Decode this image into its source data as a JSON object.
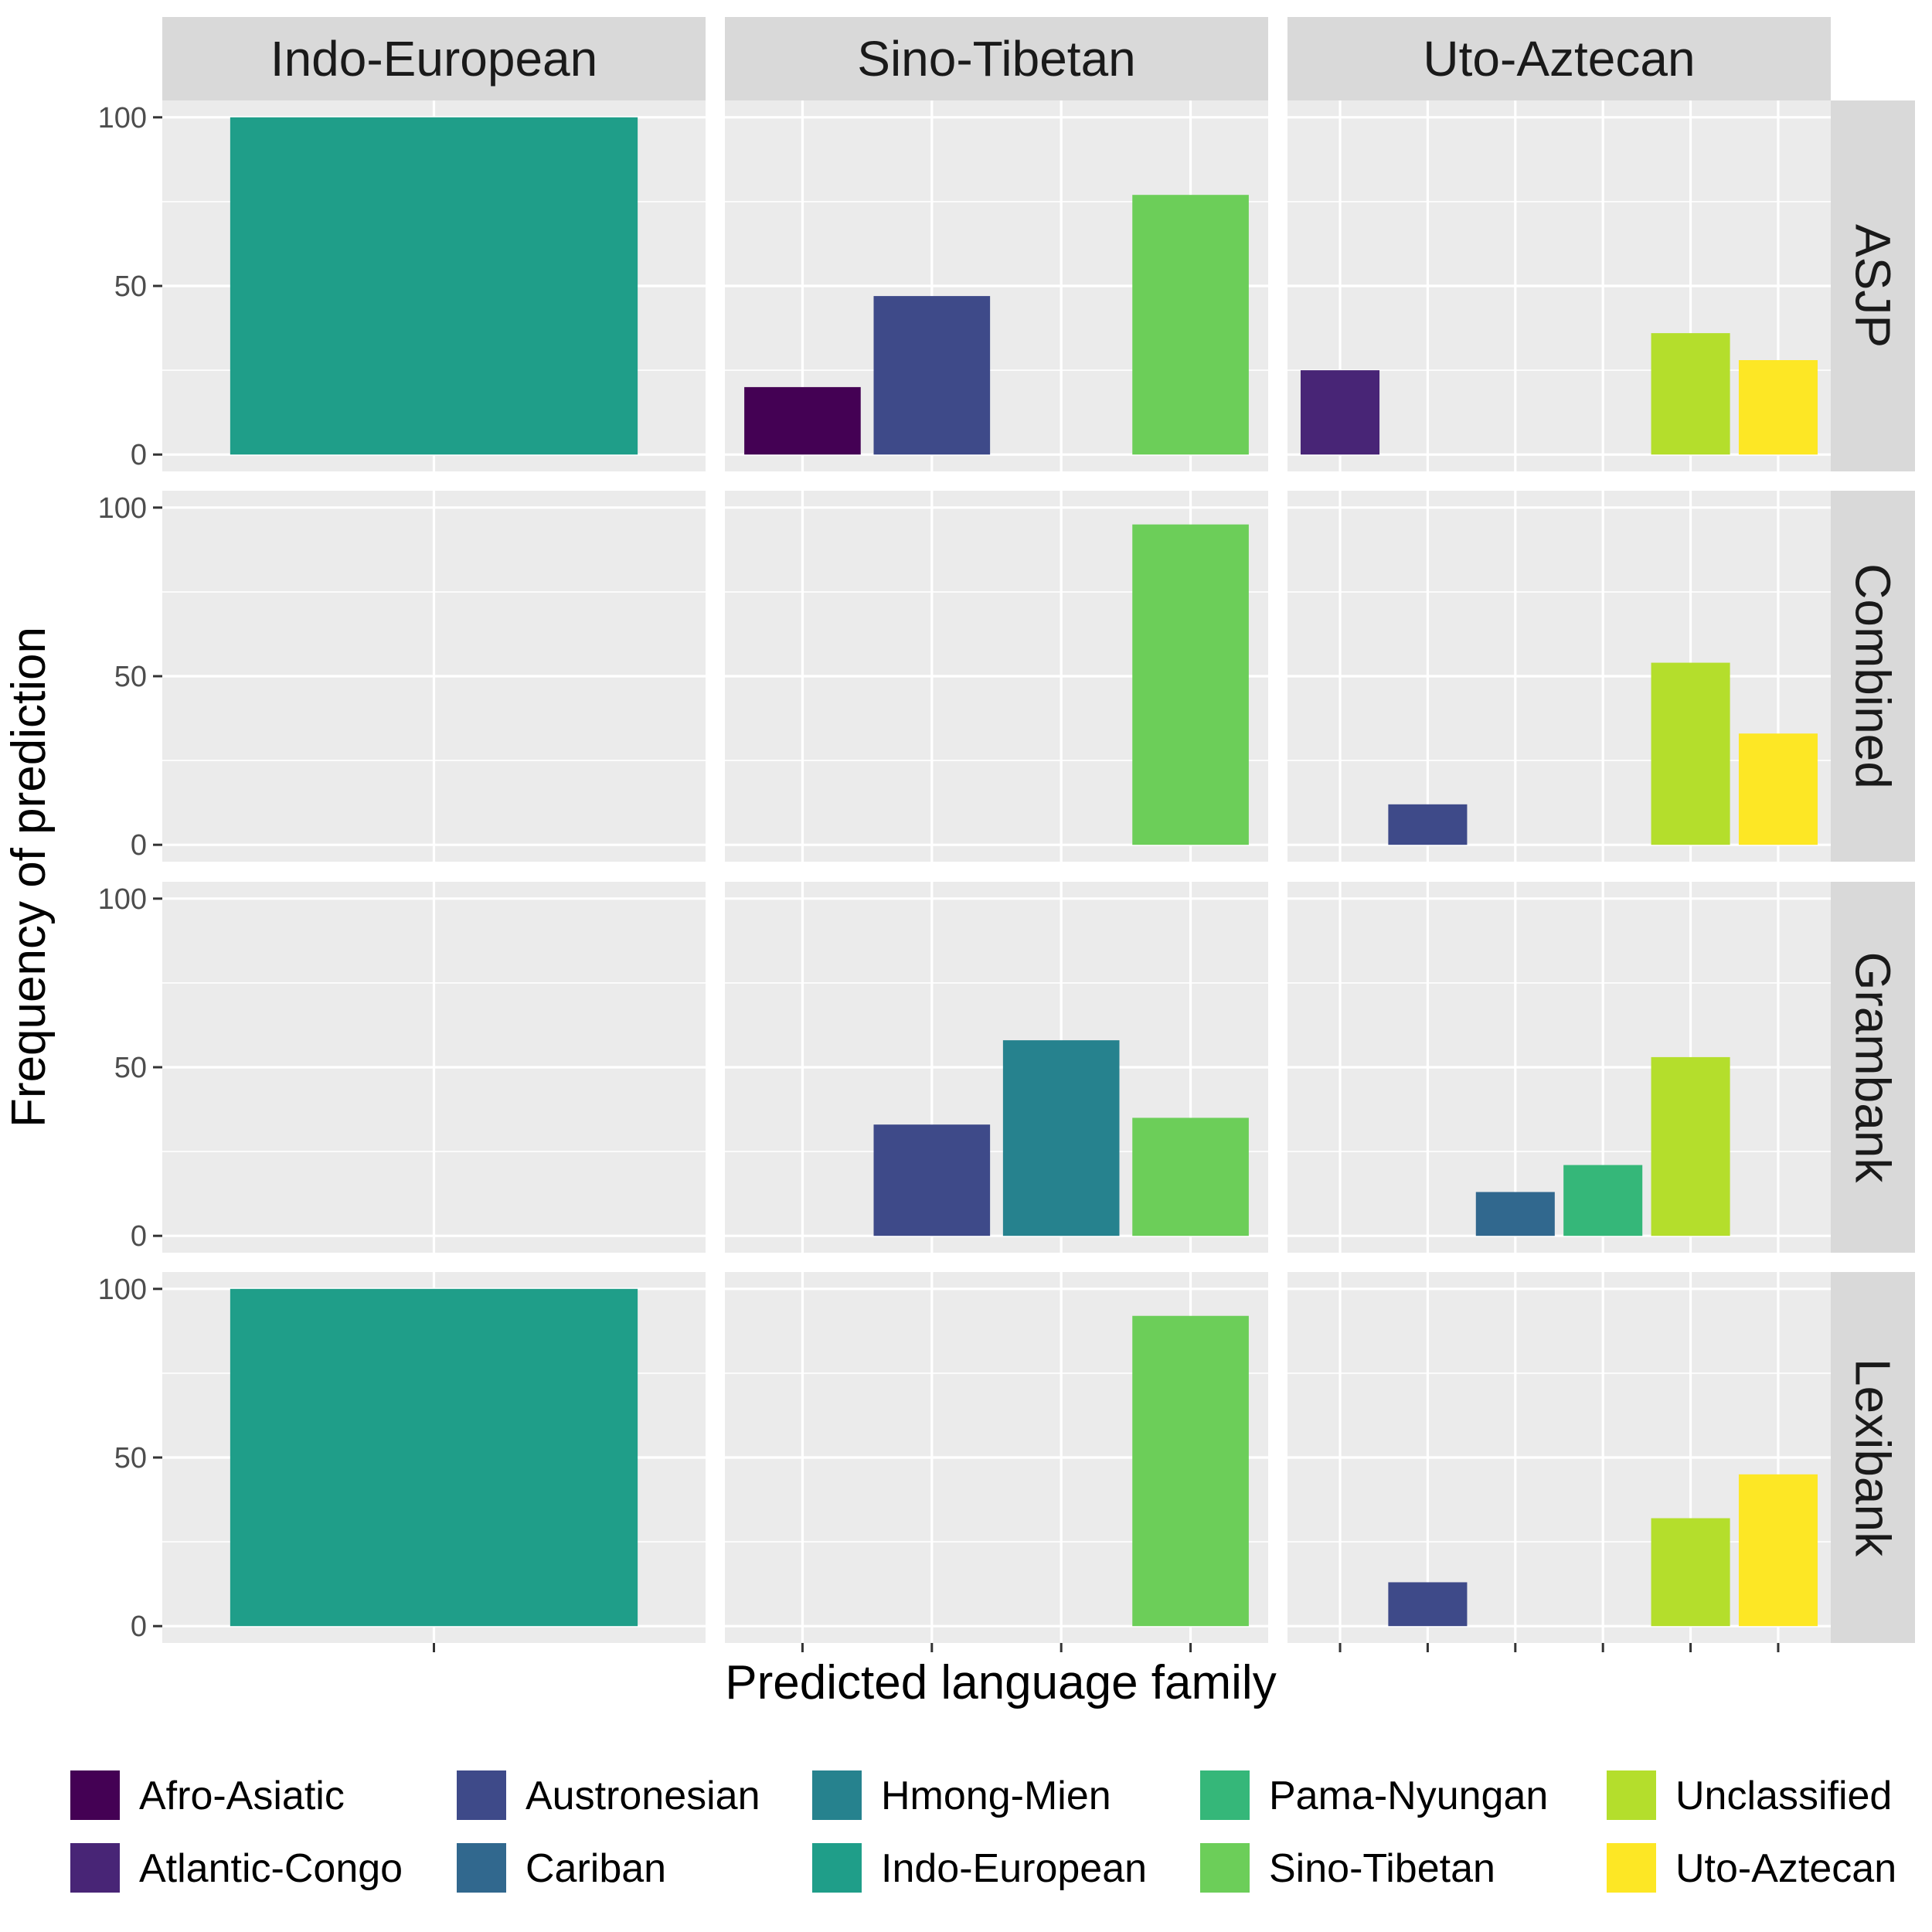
{
  "chart_data": {
    "type": "bar",
    "xlabel": "Predicted language family",
    "ylabel": "Frequency of prediction",
    "ylim": [
      0,
      100
    ],
    "yticks": [
      0,
      50,
      100
    ],
    "grid": true,
    "legend_position": "bottom",
    "column_facets": [
      "Indo-European",
      "Sino-Tibetan",
      "Uto-Aztecan"
    ],
    "row_facets": [
      "ASJP",
      "Combined",
      "Grambank",
      "Lexibank"
    ],
    "families": [
      {
        "name": "Afro-Asiatic",
        "color": "#440154"
      },
      {
        "name": "Atlantic-Congo",
        "color": "#482576"
      },
      {
        "name": "Austronesian",
        "color": "#3E4A89"
      },
      {
        "name": "Cariban",
        "color": "#31688E"
      },
      {
        "name": "Hmong-Mien",
        "color": "#26828E"
      },
      {
        "name": "Indo-European",
        "color": "#1F9E89"
      },
      {
        "name": "Pama-Nyungan",
        "color": "#35B779"
      },
      {
        "name": "Sino-Tibetan",
        "color": "#6CCE59"
      },
      {
        "name": "Unclassified",
        "color": "#B4DE2C"
      },
      {
        "name": "Uto-Aztecan",
        "color": "#FDE725"
      }
    ],
    "column_categories": {
      "Indo-European": [
        "Indo-European"
      ],
      "Sino-Tibetan": [
        "Afro-Asiatic",
        "Austronesian",
        "Hmong-Mien",
        "Sino-Tibetan"
      ],
      "Uto-Aztecan": [
        "Atlantic-Congo",
        "Austronesian",
        "Cariban",
        "Pama-Nyungan",
        "Unclassified",
        "Uto-Aztecan"
      ]
    },
    "panels": [
      {
        "row": "ASJP",
        "col": "Indo-European",
        "bars": [
          {
            "family": "Indo-European",
            "value": 100
          }
        ]
      },
      {
        "row": "ASJP",
        "col": "Sino-Tibetan",
        "bars": [
          {
            "family": "Afro-Asiatic",
            "value": 20
          },
          {
            "family": "Austronesian",
            "value": 47
          },
          {
            "family": "Sino-Tibetan",
            "value": 77
          }
        ]
      },
      {
        "row": "ASJP",
        "col": "Uto-Aztecan",
        "bars": [
          {
            "family": "Atlantic-Congo",
            "value": 25
          },
          {
            "family": "Unclassified",
            "value": 36
          },
          {
            "family": "Uto-Aztecan",
            "value": 28
          }
        ]
      },
      {
        "row": "Combined",
        "col": "Indo-European",
        "bars": []
      },
      {
        "row": "Combined",
        "col": "Sino-Tibetan",
        "bars": [
          {
            "family": "Sino-Tibetan",
            "value": 95
          }
        ]
      },
      {
        "row": "Combined",
        "col": "Uto-Aztecan",
        "bars": [
          {
            "family": "Austronesian",
            "value": 12
          },
          {
            "family": "Unclassified",
            "value": 54
          },
          {
            "family": "Uto-Aztecan",
            "value": 33
          }
        ]
      },
      {
        "row": "Grambank",
        "col": "Indo-European",
        "bars": []
      },
      {
        "row": "Grambank",
        "col": "Sino-Tibetan",
        "bars": [
          {
            "family": "Austronesian",
            "value": 33
          },
          {
            "family": "Hmong-Mien",
            "value": 58
          },
          {
            "family": "Sino-Tibetan",
            "value": 35
          }
        ]
      },
      {
        "row": "Grambank",
        "col": "Uto-Aztecan",
        "bars": [
          {
            "family": "Cariban",
            "value": 13
          },
          {
            "family": "Pama-Nyungan",
            "value": 21
          },
          {
            "family": "Unclassified",
            "value": 53
          }
        ]
      },
      {
        "row": "Lexibank",
        "col": "Indo-European",
        "bars": [
          {
            "family": "Indo-European",
            "value": 100
          }
        ]
      },
      {
        "row": "Lexibank",
        "col": "Sino-Tibetan",
        "bars": [
          {
            "family": "Sino-Tibetan",
            "value": 92
          }
        ]
      },
      {
        "row": "Lexibank",
        "col": "Uto-Aztecan",
        "bars": [
          {
            "family": "Austronesian",
            "value": 13
          },
          {
            "family": "Unclassified",
            "value": 32
          },
          {
            "family": "Uto-Aztecan",
            "value": 45
          }
        ]
      }
    ]
  }
}
